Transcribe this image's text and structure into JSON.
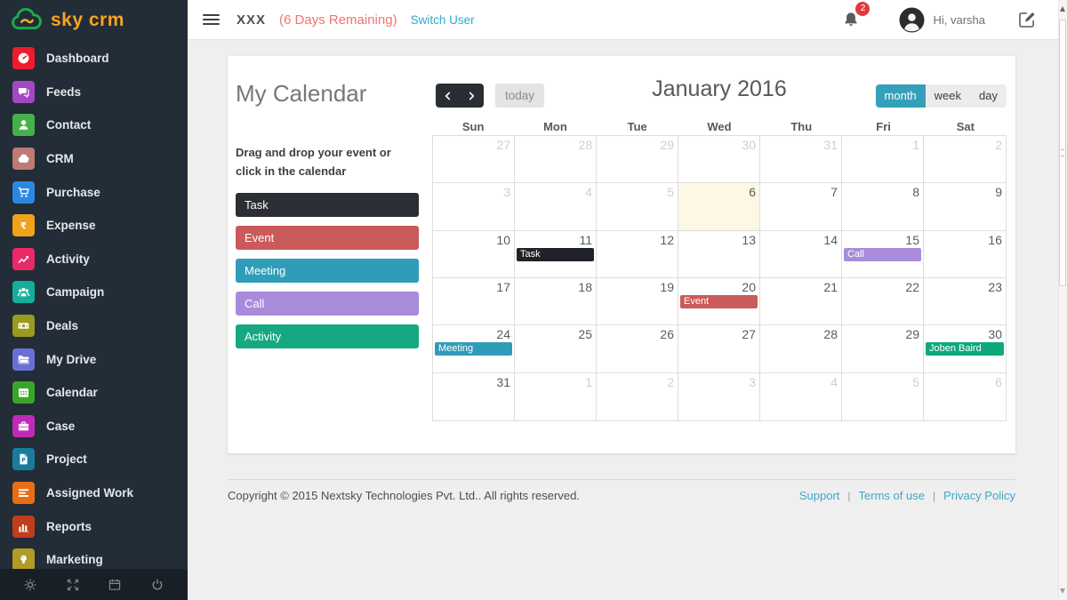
{
  "colors": {
    "sidebar_bg": "#232d37",
    "brand_orange": "#f8a51e",
    "brand_green": "#1faa4b",
    "accent_teal": "#35a0b9",
    "link_blue": "#38a8ca",
    "badge_red": "#e4393c",
    "today_cell_bg": "#fcf8e3"
  },
  "sidebar": {
    "logo_text": "sky crm",
    "items": [
      {
        "label": "Dashboard",
        "icon": "dashboard-icon",
        "color": "#ee1b2c"
      },
      {
        "label": "Feeds",
        "icon": "feeds-icon",
        "color": "#a347c4"
      },
      {
        "label": "Contact",
        "icon": "contact-icon",
        "color": "#46b04a"
      },
      {
        "label": "CRM",
        "icon": "crm-icon",
        "color": "#bd7b74"
      },
      {
        "label": "Purchase",
        "icon": "purchase-icon",
        "color": "#2d87e2"
      },
      {
        "label": "Expense",
        "icon": "expense-icon",
        "color": "#f0a21a"
      },
      {
        "label": "Activity",
        "icon": "activity-icon",
        "color": "#ea2a68"
      },
      {
        "label": "Campaign",
        "icon": "campaign-icon",
        "color": "#16ae9b"
      },
      {
        "label": "Deals",
        "icon": "deals-icon",
        "color": "#9a9a21"
      },
      {
        "label": "My Drive",
        "icon": "my-drive-icon",
        "color": "#6a6fd8"
      },
      {
        "label": "Calendar",
        "icon": "calendar-icon",
        "color": "#39a52a"
      },
      {
        "label": "Case",
        "icon": "case-icon",
        "color": "#c02ab8"
      },
      {
        "label": "Project",
        "icon": "project-icon",
        "color": "#1b7b9c"
      },
      {
        "label": "Assigned Work",
        "icon": "assigned-work-icon",
        "color": "#e96d14"
      },
      {
        "label": "Reports",
        "icon": "reports-icon",
        "color": "#bf3e1b"
      },
      {
        "label": "Marketing",
        "icon": "marketing-icon",
        "color": "#b09b26"
      }
    ],
    "footer_icons": [
      {
        "name": "settings-icon"
      },
      {
        "name": "fullscreen-icon"
      },
      {
        "name": "calendar-tool-icon"
      },
      {
        "name": "power-icon"
      }
    ]
  },
  "topbar": {
    "company": "XXX",
    "days_remaining": "(6 Days Remaining)",
    "switch_user": "Switch User",
    "notification_count": "2",
    "greeting": "Hi, varsha"
  },
  "calendar": {
    "title": "My Calendar",
    "hint": "Drag and drop your event or click in the calendar",
    "drag_items": [
      {
        "label": "Task",
        "color": "#2b2e34"
      },
      {
        "label": "Event",
        "color": "#cb5a5a"
      },
      {
        "label": "Meeting",
        "color": "#2f9cb8"
      },
      {
        "label": "Call",
        "color": "#a88bdb"
      },
      {
        "label": "Activity",
        "color": "#14a981"
      }
    ],
    "toolbar": {
      "today_label": "today",
      "month_title": "January 2016",
      "views": [
        "month",
        "week",
        "day"
      ],
      "active_view": "month"
    },
    "day_headers": [
      "Sun",
      "Mon",
      "Tue",
      "Wed",
      "Thu",
      "Fri",
      "Sat"
    ],
    "weeks": [
      [
        {
          "d": "27",
          "muted": true
        },
        {
          "d": "28",
          "muted": true
        },
        {
          "d": "29",
          "muted": true
        },
        {
          "d": "30",
          "muted": true
        },
        {
          "d": "31",
          "muted": true
        },
        {
          "d": "1",
          "muted": true
        },
        {
          "d": "2",
          "muted": true
        }
      ],
      [
        {
          "d": "3",
          "muted": true
        },
        {
          "d": "4",
          "muted": true
        },
        {
          "d": "5",
          "muted": true
        },
        {
          "d": "6",
          "today": true
        },
        {
          "d": "7"
        },
        {
          "d": "8"
        },
        {
          "d": "9"
        }
      ],
      [
        {
          "d": "10"
        },
        {
          "d": "11",
          "event": {
            "label": "Task",
            "color": "#1f2227"
          }
        },
        {
          "d": "12"
        },
        {
          "d": "13"
        },
        {
          "d": "14"
        },
        {
          "d": "15",
          "event": {
            "label": "Call",
            "color": "#a88bdb"
          }
        },
        {
          "d": "16"
        }
      ],
      [
        {
          "d": "17"
        },
        {
          "d": "18"
        },
        {
          "d": "19"
        },
        {
          "d": "20",
          "event": {
            "label": "Event",
            "color": "#cb5a5a"
          }
        },
        {
          "d": "21"
        },
        {
          "d": "22"
        },
        {
          "d": "23"
        }
      ],
      [
        {
          "d": "24",
          "event": {
            "label": "Meeting",
            "color": "#2f9cb8"
          }
        },
        {
          "d": "25"
        },
        {
          "d": "26"
        },
        {
          "d": "27"
        },
        {
          "d": "28"
        },
        {
          "d": "29"
        },
        {
          "d": "30",
          "event": {
            "label": "Joben Baird",
            "color": "#0ea87c"
          }
        }
      ],
      [
        {
          "d": "31"
        },
        {
          "d": "1",
          "muted": true
        },
        {
          "d": "2",
          "muted": true
        },
        {
          "d": "3",
          "muted": true
        },
        {
          "d": "4",
          "muted": true
        },
        {
          "d": "5",
          "muted": true
        },
        {
          "d": "6",
          "muted": true
        }
      ]
    ]
  },
  "footer": {
    "copyright": "Copyright © 2015 Nextsky Technologies Pvt. Ltd.. All rights reserved.",
    "links": [
      "Support",
      "Terms of use",
      "Privacy Policy"
    ]
  }
}
